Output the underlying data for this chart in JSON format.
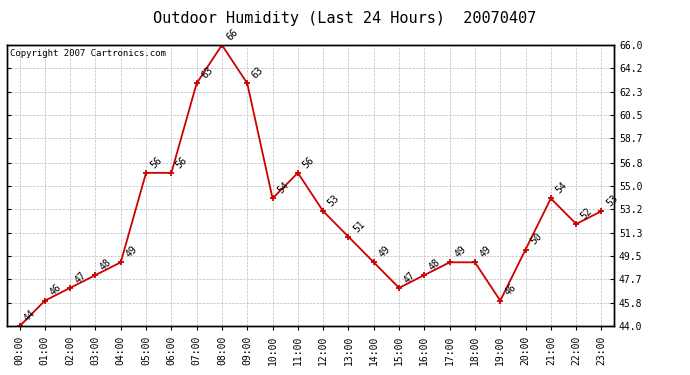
{
  "title": "Outdoor Humidity (Last 24 Hours)  20070407",
  "copyright": "Copyright 2007 Cartronics.com",
  "hours": [
    "00:00",
    "01:00",
    "02:00",
    "03:00",
    "04:00",
    "05:00",
    "06:00",
    "07:00",
    "08:00",
    "09:00",
    "10:00",
    "11:00",
    "12:00",
    "13:00",
    "14:00",
    "15:00",
    "16:00",
    "17:00",
    "18:00",
    "19:00",
    "20:00",
    "21:00",
    "22:00",
    "23:00"
  ],
  "values": [
    44,
    46,
    47,
    48,
    49,
    56,
    56,
    63,
    66,
    63,
    54,
    56,
    53,
    51,
    49,
    47,
    48,
    49,
    49,
    46,
    50,
    54,
    52,
    53
  ],
  "line_color": "#cc0000",
  "marker_color": "#cc0000",
  "bg_color": "#ffffff",
  "plot_bg_color": "#ffffff",
  "grid_color": "#bbbbbb",
  "ylim": [
    44.0,
    66.0
  ],
  "yticks": [
    44.0,
    45.8,
    47.7,
    49.5,
    51.3,
    53.2,
    55.0,
    56.8,
    58.7,
    60.5,
    62.3,
    64.2,
    66.0
  ],
  "title_fontsize": 11,
  "label_fontsize": 7,
  "tick_fontsize": 7,
  "copyright_fontsize": 6.5,
  "annotation_fontsize": 7
}
